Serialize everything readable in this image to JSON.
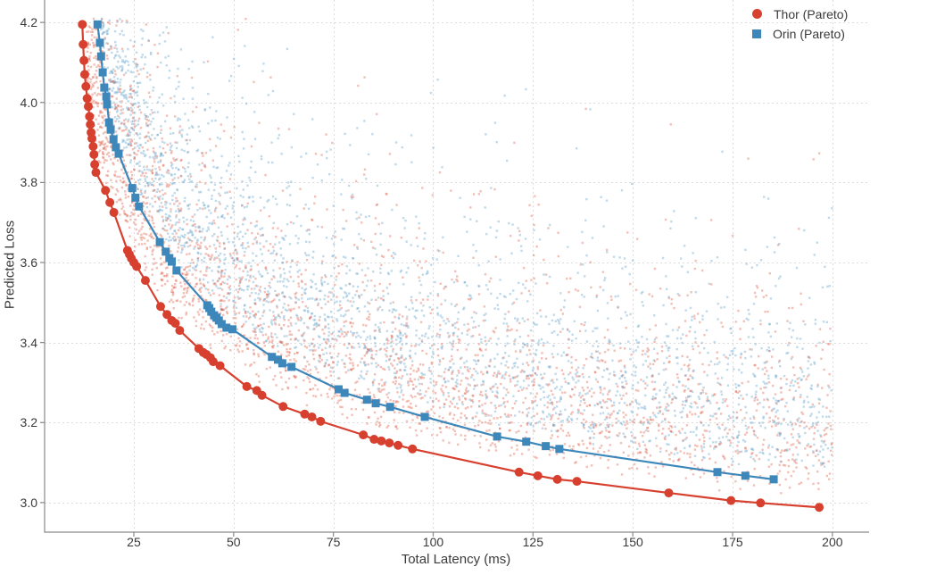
{
  "chart_data": {
    "type": "scatter",
    "title": "",
    "xlabel": "Total Latency (ms)",
    "ylabel": "Predicted Loss",
    "xlim": [
      2.65,
      209.2
    ],
    "ylim": [
      2.926,
      4.256
    ],
    "xticks": [
      25,
      50,
      75,
      100,
      125,
      150,
      175,
      200
    ],
    "yticks": [
      3.0,
      3.2,
      3.4,
      3.6,
      3.8,
      4.0,
      4.2
    ],
    "grid": true,
    "grid_style": "dashed",
    "grid_color": "#dcdcdc",
    "spine_color": "#8a8a8a",
    "text_color": "#3a3a3a",
    "legend_position": "upper right",
    "series": [
      {
        "name": "Thor (Pareto)",
        "marker": "circle",
        "color": "#d7402e",
        "line_width": 2.2,
        "marker_size": 10,
        "points": [
          [
            12.1,
            4.195
          ],
          [
            12.3,
            4.145
          ],
          [
            12.5,
            4.105
          ],
          [
            12.7,
            4.07
          ],
          [
            13.0,
            4.04
          ],
          [
            13.3,
            4.01
          ],
          [
            13.6,
            3.99
          ],
          [
            13.9,
            3.965
          ],
          [
            14.1,
            3.945
          ],
          [
            14.3,
            3.925
          ],
          [
            14.5,
            3.91
          ],
          [
            14.8,
            3.89
          ],
          [
            15.0,
            3.87
          ],
          [
            15.2,
            3.845
          ],
          [
            15.5,
            3.825
          ],
          [
            17.9,
            3.78
          ],
          [
            19.0,
            3.75
          ],
          [
            20.0,
            3.725
          ],
          [
            23.4,
            3.63
          ],
          [
            23.9,
            3.62
          ],
          [
            24.4,
            3.61
          ],
          [
            25.0,
            3.6
          ],
          [
            25.7,
            3.59
          ],
          [
            27.9,
            3.555
          ],
          [
            31.7,
            3.49
          ],
          [
            33.3,
            3.47
          ],
          [
            34.5,
            3.455
          ],
          [
            35.4,
            3.448
          ],
          [
            36.5,
            3.43
          ],
          [
            41.3,
            3.385
          ],
          [
            42.4,
            3.375
          ],
          [
            43.2,
            3.37
          ],
          [
            44.2,
            3.362
          ],
          [
            44.9,
            3.352
          ],
          [
            46.6,
            3.342
          ],
          [
            53.3,
            3.29
          ],
          [
            55.8,
            3.28
          ],
          [
            57.1,
            3.268
          ],
          [
            62.4,
            3.24
          ],
          [
            67.8,
            3.221
          ],
          [
            69.6,
            3.214
          ],
          [
            71.8,
            3.203
          ],
          [
            82.5,
            3.169
          ],
          [
            85.2,
            3.158
          ],
          [
            87.0,
            3.154
          ],
          [
            89.0,
            3.149
          ],
          [
            91.2,
            3.143
          ],
          [
            94.8,
            3.134
          ],
          [
            121.5,
            3.076
          ],
          [
            126.2,
            3.067
          ],
          [
            131.1,
            3.058
          ],
          [
            136.0,
            3.053
          ],
          [
            159.0,
            3.024
          ],
          [
            174.6,
            3.005
          ],
          [
            182.0,
            2.999
          ],
          [
            196.7,
            2.988
          ]
        ]
      },
      {
        "name": "Orin (Pareto)",
        "marker": "square",
        "color": "#3d87ba",
        "line_width": 2.2,
        "marker_size": 9,
        "points": [
          [
            15.9,
            4.195
          ],
          [
            16.5,
            4.149
          ],
          [
            16.8,
            4.115
          ],
          [
            17.2,
            4.075
          ],
          [
            17.6,
            4.037
          ],
          [
            18.1,
            4.015
          ],
          [
            18.3,
            3.995
          ],
          [
            18.8,
            3.95
          ],
          [
            19.2,
            3.932
          ],
          [
            19.9,
            3.908
          ],
          [
            20.5,
            3.888
          ],
          [
            21.2,
            3.872
          ],
          [
            24.6,
            3.786
          ],
          [
            25.4,
            3.762
          ],
          [
            26.3,
            3.74
          ],
          [
            31.5,
            3.651
          ],
          [
            33.0,
            3.627
          ],
          [
            33.9,
            3.611
          ],
          [
            34.5,
            3.602
          ],
          [
            35.7,
            3.58
          ],
          [
            43.4,
            3.493
          ],
          [
            43.9,
            3.486
          ],
          [
            44.4,
            3.477
          ],
          [
            45.1,
            3.468
          ],
          [
            45.7,
            3.462
          ],
          [
            46.3,
            3.455
          ],
          [
            47.0,
            3.446
          ],
          [
            48.2,
            3.437
          ],
          [
            49.7,
            3.433
          ],
          [
            59.6,
            3.364
          ],
          [
            61.1,
            3.357
          ],
          [
            62.2,
            3.348
          ],
          [
            64.5,
            3.339
          ],
          [
            76.3,
            3.283
          ],
          [
            77.8,
            3.274
          ],
          [
            83.4,
            3.257
          ],
          [
            85.6,
            3.248
          ],
          [
            89.2,
            3.239
          ],
          [
            97.9,
            3.214
          ],
          [
            116.0,
            3.165
          ],
          [
            123.3,
            3.152
          ],
          [
            128.2,
            3.141
          ],
          [
            131.6,
            3.134
          ],
          [
            171.2,
            3.076
          ],
          [
            178.2,
            3.067
          ],
          [
            185.3,
            3.058
          ]
        ]
      }
    ],
    "background_cloud": {
      "description": "Dense semi-transparent cloud of sampled architectures above each Pareto frontier",
      "count_per_series": 2800,
      "seed": 9,
      "lat_range": [
        13,
        200
      ],
      "x_distribution": {
        "type": "mixed-log-uniform",
        "log_fraction": 0.5
      },
      "loss_offset": {
        "distribution": "gamma",
        "shape": 2,
        "scale": 0.105,
        "min": 0.02
      },
      "max_loss": 4.21,
      "colors": {
        "thor": "#dd5a42",
        "orin": "#5b9ec9"
      },
      "alpha": 0.38,
      "dot_radius": 1.2
    }
  }
}
